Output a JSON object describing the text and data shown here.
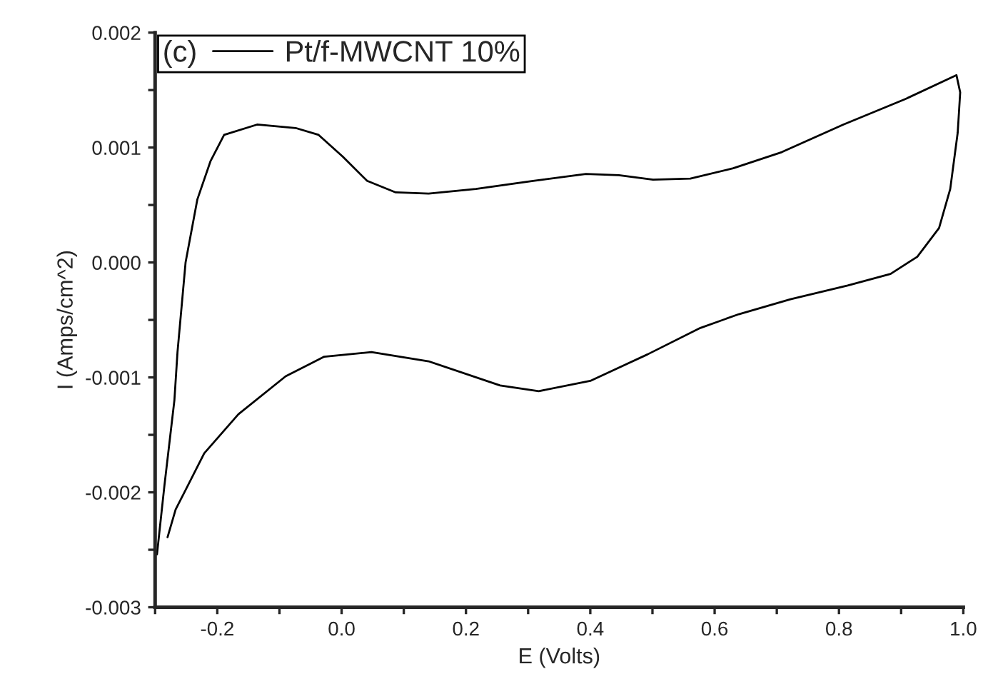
{
  "chart_data": {
    "type": "line",
    "xlabel": "E (Volts)",
    "ylabel": "I (Amps/cm^2)",
    "legend_title": "(c)",
    "series": [
      {
        "name": "Pt/f-MWCNT 10%",
        "color": "#000000",
        "x": [
          -0.297,
          -0.285,
          -0.269,
          -0.264,
          -0.251,
          -0.232,
          -0.211,
          -0.189,
          -0.136,
          -0.074,
          -0.037,
          0.002,
          0.041,
          0.087,
          0.14,
          0.216,
          0.308,
          0.393,
          0.446,
          0.501,
          0.561,
          0.63,
          0.708,
          0.807,
          0.906,
          0.989,
          0.995,
          0.991,
          0.979,
          0.961,
          0.926,
          0.883,
          0.814,
          0.722,
          0.639,
          0.577,
          0.492,
          0.4,
          0.317,
          0.255,
          0.14,
          0.048,
          -0.028,
          -0.09,
          -0.166,
          -0.221,
          -0.267,
          -0.28
        ],
        "values": [
          -0.00254,
          -0.00194,
          -0.0012,
          -0.00078,
          0.0,
          0.00055,
          0.00088,
          0.00111,
          0.0012,
          0.00117,
          0.00111,
          0.00092,
          0.00071,
          0.00061,
          0.0006,
          0.00064,
          0.00071,
          0.00077,
          0.00076,
          0.00072,
          0.00073,
          0.00082,
          0.00096,
          0.0012,
          0.00142,
          0.00163,
          0.00148,
          0.00113,
          0.00064,
          0.0003,
          5e-05,
          -0.0001,
          -0.0002,
          -0.00032,
          -0.00045,
          -0.00057,
          -0.0008,
          -0.00103,
          -0.00112,
          -0.00107,
          -0.00086,
          -0.00078,
          -0.00082,
          -0.00099,
          -0.00132,
          -0.00166,
          -0.00215,
          -0.00239
        ]
      }
    ],
    "xlim": [
      -0.3,
      1.0
    ],
    "xticks": [
      {
        "value": -0.3,
        "label": null
      },
      -0.2,
      {
        "value": -0.1,
        "label": null
      },
      {
        "value": 0.0,
        "label": "0.0"
      },
      {
        "value": 0.1,
        "label": null
      },
      0.2,
      {
        "value": 0.3,
        "label": null
      },
      0.4,
      {
        "value": 0.5,
        "label": null
      },
      0.6,
      {
        "value": 0.7,
        "label": null
      },
      0.8,
      {
        "value": 0.9,
        "label": null
      },
      {
        "value": 1.0,
        "label": "1.0"
      }
    ],
    "ylim": [
      -0.003,
      0.002
    ],
    "yticks": [
      -0.003,
      {
        "value": -0.0025,
        "label": null
      },
      -0.002,
      {
        "value": -0.0015,
        "label": null
      },
      -0.001,
      {
        "value": -0.0005,
        "label": null
      },
      {
        "value": 0.0,
        "label": "0.000"
      },
      {
        "value": 0.0005,
        "label": null
      },
      0.001,
      {
        "value": 0.0015,
        "label": null
      },
      0.002
    ],
    "legend": "top left",
    "grid": false,
    "line_style": "solid",
    "marker": "none"
  }
}
